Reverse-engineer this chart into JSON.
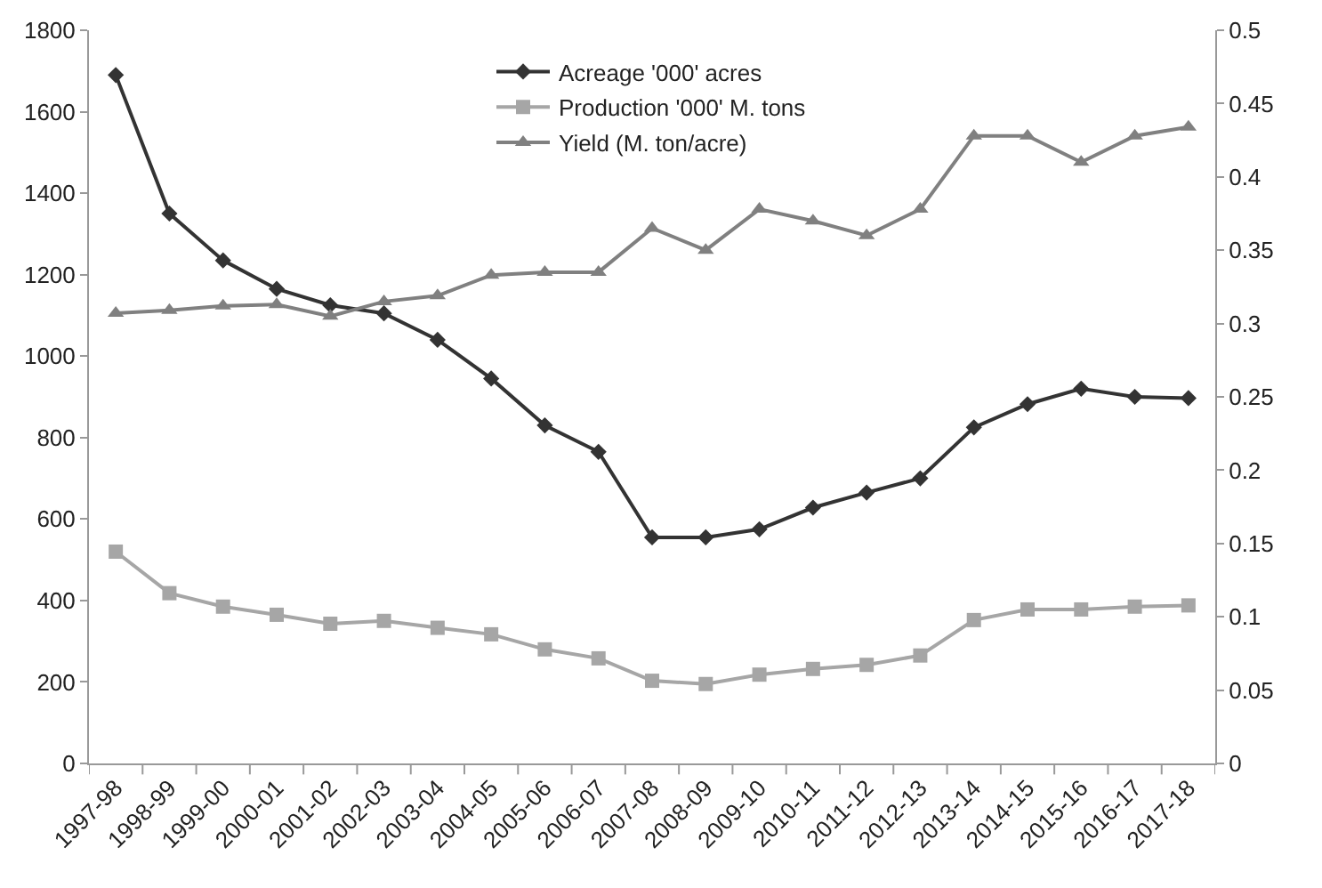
{
  "chart_data": {
    "type": "line",
    "categories": [
      "1997-98",
      "1998-99",
      "1999-00",
      "2000-01",
      "2001-02",
      "2002-03",
      "2003-04",
      "2004-05",
      "2005-06",
      "2006-07",
      "2007-08",
      "2008-09",
      "2009-10",
      "2010-11",
      "2011-12",
      "2012-13",
      "2013-14",
      "2014-15",
      "2015-16",
      "2016-17",
      "2017-18"
    ],
    "series": [
      {
        "name": "Acreage '000' acres",
        "color": "#333333",
        "marker": "diamond",
        "values": [
          1690,
          1350,
          1235,
          1165,
          1125,
          1105,
          1040,
          945,
          830,
          765,
          555,
          555,
          575,
          628,
          665,
          700,
          825,
          882,
          920,
          900,
          897
        ]
      },
      {
        "name": "Production '000' M. tons",
        "color": "#a6a6a6",
        "marker": "square",
        "values": [
          520,
          418,
          385,
          365,
          343,
          350,
          333,
          317,
          280,
          258,
          203,
          195,
          218,
          232,
          242,
          265,
          352,
          378,
          378,
          385,
          388
        ]
      },
      {
        "name": "Yield (M. ton/acre)",
        "color": "#808080",
        "marker": "triangle",
        "axis": "y2",
        "values": [
          0.307,
          0.309,
          0.312,
          0.313,
          0.305,
          0.315,
          0.319,
          0.333,
          0.335,
          0.335,
          0.365,
          0.35,
          0.378,
          0.37,
          0.36,
          0.378,
          0.428,
          0.428,
          0.41,
          0.428,
          0.434
        ]
      }
    ],
    "ylim": [
      0,
      1800
    ],
    "yticks": [
      0,
      200,
      400,
      600,
      800,
      1000,
      1200,
      1400,
      1600,
      1800
    ],
    "y2lim": [
      0,
      0.5
    ],
    "y2ticks": [
      0,
      0.05,
      0.1,
      0.15,
      0.2,
      0.25,
      0.3,
      0.35,
      0.4,
      0.45,
      0.5
    ],
    "grid": false,
    "legend": "top",
    "line_style": "solid"
  }
}
